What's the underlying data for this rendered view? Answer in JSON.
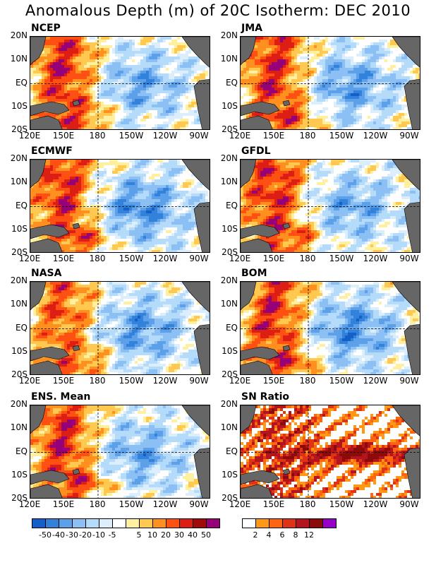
{
  "title": "Anomalous Depth (m) of 20C Isotherm: DEC 2010",
  "colors": {
    "ocean_land": "#666666",
    "anom_scale": [
      "#1460c8",
      "#3282dc",
      "#5ca0ea",
      "#8cc0f4",
      "#b4dcfa",
      "#dceefc",
      "#ffffff",
      "#fff0a0",
      "#ffc850",
      "#ff9020",
      "#ff5014",
      "#dc1e14",
      "#a00a0a",
      "#960078"
    ],
    "sn_scale": [
      "#ffffff",
      "#ff9814",
      "#ff6410",
      "#e03214",
      "#b4141e",
      "#8c0a0a",
      "#9600c8"
    ]
  },
  "chart_data": [
    {
      "type": "heatmap",
      "title": "NCEP",
      "xlabel": "",
      "ylabel": "",
      "x_ticks": [
        "120E",
        "150E",
        "180",
        "150W",
        "120W",
        "90W"
      ],
      "y_ticks": [
        "20N",
        "10N",
        "EQ",
        "10S",
        "20S"
      ],
      "description_values": {
        "west_pacific_anomaly": 40,
        "east_pacific_anomaly": -20
      }
    },
    {
      "type": "heatmap",
      "title": "JMA",
      "x_ticks": [
        "120E",
        "150E",
        "180",
        "150W",
        "120W",
        "90W"
      ],
      "y_ticks": [
        "20N",
        "10N",
        "EQ",
        "10S",
        "20S"
      ],
      "description_values": {
        "west_pacific_anomaly": 40,
        "east_pacific_anomaly": -20
      }
    },
    {
      "type": "heatmap",
      "title": "ECMWF",
      "x_ticks": [
        "120E",
        "150E",
        "180",
        "150W",
        "120W",
        "90W"
      ],
      "y_ticks": [
        "20N",
        "10N",
        "EQ",
        "10S",
        "20S"
      ],
      "description_values": {
        "west_pacific_anomaly": 40,
        "east_pacific_anomaly": -20
      }
    },
    {
      "type": "heatmap",
      "title": "GFDL",
      "x_ticks": [
        "120E",
        "150E",
        "180",
        "150W",
        "120W",
        "90W"
      ],
      "y_ticks": [
        "20N",
        "10N",
        "EQ",
        "10S",
        "20S"
      ],
      "description_values": {
        "west_pacific_anomaly": 40,
        "east_pacific_anomaly": -20
      }
    },
    {
      "type": "heatmap",
      "title": "NASA",
      "x_ticks": [
        "120E",
        "150E",
        "180",
        "150W",
        "120W",
        "90W"
      ],
      "y_ticks": [
        "20N",
        "10N",
        "EQ",
        "10S",
        "20S"
      ],
      "description_values": {
        "west_pacific_anomaly": 30,
        "east_pacific_anomaly": -10
      }
    },
    {
      "type": "heatmap",
      "title": "BOM",
      "x_ticks": [
        "120E",
        "150E",
        "180",
        "150W",
        "120W",
        "90W"
      ],
      "y_ticks": [
        "20N",
        "10N",
        "EQ",
        "10S",
        "20S"
      ],
      "description_values": {
        "west_pacific_anomaly": 40,
        "east_pacific_anomaly": -20
      }
    },
    {
      "type": "heatmap",
      "title": "ENS. Mean",
      "x_ticks": [
        "120E",
        "150E",
        "180",
        "150W",
        "120W",
        "90W"
      ],
      "y_ticks": [
        "20N",
        "10N",
        "EQ",
        "10S",
        "20S"
      ],
      "description_values": {
        "west_pacific_anomaly": 40,
        "east_pacific_anomaly": -20
      }
    },
    {
      "type": "heatmap",
      "title": "SN Ratio",
      "x_ticks": [
        "120E",
        "150E",
        "180",
        "150W",
        "120W",
        "90W"
      ],
      "y_ticks": [
        "20N",
        "10N",
        "EQ",
        "10S",
        "20S"
      ],
      "description_values": {
        "max_ratio": 12
      }
    }
  ],
  "legend_anom": {
    "labels": [
      "-50",
      "-40",
      "-30",
      "-20",
      "-10",
      "-5",
      "5",
      "10",
      "20",
      "30",
      "40",
      "50"
    ]
  },
  "legend_sn": {
    "labels": [
      "2",
      "4",
      "6",
      "8",
      "12"
    ]
  }
}
